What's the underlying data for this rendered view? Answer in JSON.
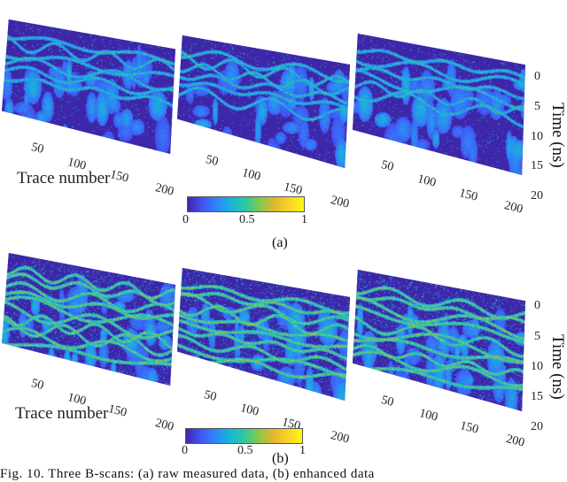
{
  "chart_data": [
    {
      "type": "heatmap",
      "panel_group": "(a)",
      "panels": [
        {
          "index": 1,
          "description": "GPR B-scan heatmap, sparse bright hyperbolic reflections near top, mostly low values",
          "xlabel": "Trace number",
          "x_ticks": [
            50,
            100,
            150,
            200
          ]
        },
        {
          "index": 2,
          "description": "GPR B-scan heatmap, bright hyperbolas at shallow depth, blob-like mid-value patches below",
          "x_ticks": [
            50,
            100,
            150,
            200
          ]
        },
        {
          "index": 3,
          "description": "GPR B-scan heatmap, layered bright reflections top, hyperbola arc, vertical feature near trace 175",
          "ylabel": "Time (ns)",
          "y_ticks": [
            0,
            5,
            10,
            15,
            20
          ],
          "x_ticks": [
            50,
            100,
            150,
            200
          ]
        }
      ],
      "colorbar": {
        "min": 0,
        "max": 1,
        "ticks": [
          "0",
          "0.5",
          "1"
        ],
        "colormap": "parula"
      },
      "xlabel": "Trace number",
      "ylabel": "Time (ns)",
      "xlim": [
        0,
        200
      ],
      "ylim": [
        0,
        20
      ]
    },
    {
      "type": "heatmap",
      "panel_group": "(b)",
      "panels": [
        {
          "index": 1,
          "description": "GPR B-scan heatmap, dense bright layered reflections near top, more texture throughout",
          "xlabel": "Trace number",
          "x_ticks": [
            50,
            100,
            150,
            200
          ]
        },
        {
          "index": 2,
          "description": "GPR B-scan heatmap, dense bright shallow reflections, diffuse mid-values below",
          "x_ticks": [
            50,
            100,
            150,
            200
          ]
        },
        {
          "index": 3,
          "description": "GPR B-scan heatmap, dense bright layers at top, hyperbolic arcs and vertical feature near trace 175",
          "ylabel": "Time (ns)",
          "y_ticks": [
            0,
            5,
            10,
            15,
            20
          ],
          "x_ticks": [
            50,
            100,
            150,
            200
          ]
        }
      ],
      "colorbar": {
        "min": 0,
        "max": 1,
        "ticks": [
          "0",
          "0.5",
          "1"
        ],
        "colormap": "parula"
      },
      "xlabel": "Trace number",
      "ylabel": "Time (ns)",
      "xlim": [
        0,
        200
      ],
      "ylim": [
        0,
        20
      ]
    }
  ],
  "labels": {
    "trace_number": "Trace number",
    "time_ns": "Time (ns)",
    "x_ticks": [
      "50",
      "100",
      "150",
      "200"
    ],
    "y_ticks": [
      "0",
      "5",
      "10",
      "15",
      "20"
    ],
    "cbar_ticks": [
      "0",
      "0.5",
      "1"
    ],
    "sub_a": "(a)",
    "sub_b": "(b)",
    "caption": "Fig. 10.  Three B-scans: (a) raw measured data, (b) enhanced data"
  },
  "colors": {
    "background_low": "#3e26a8",
    "mid": "#18b4d9",
    "high": "#f9fb0e"
  }
}
